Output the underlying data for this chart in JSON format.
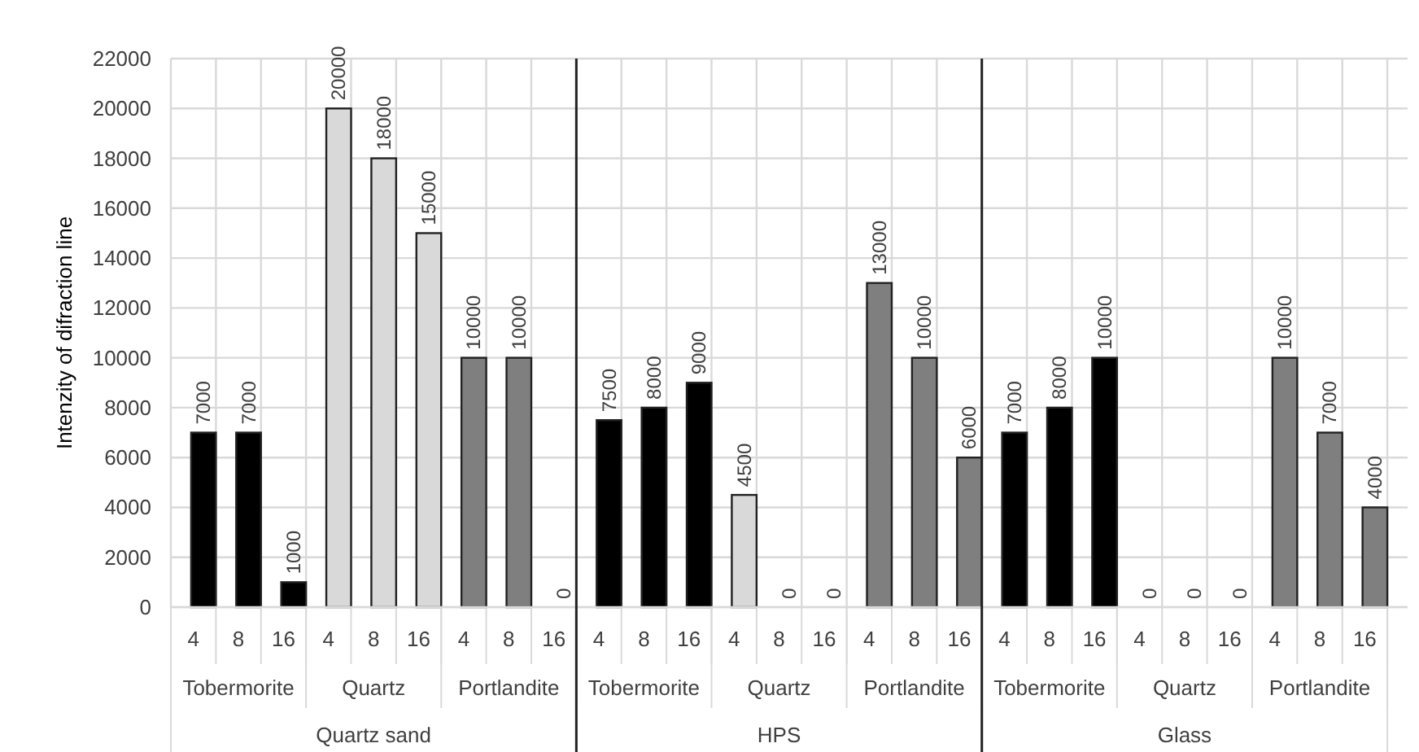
{
  "chart_data": {
    "type": "bar",
    "ylabel": "Intenzity of difraction line",
    "categories": [
      "4",
      "8",
      "16",
      "4",
      "8",
      "16",
      "4",
      "8",
      "16",
      "4",
      "8",
      "16",
      "4",
      "8",
      "16",
      "4",
      "8",
      "16",
      "4",
      "8",
      "16",
      "4",
      "8",
      "16",
      "4",
      "8",
      "16"
    ],
    "annotations": [
      "Tobermorite",
      "Quartz",
      "Portlandite",
      "Tobermorite",
      "Quartz",
      "Portlandite",
      "Tobermorite",
      "Quartz",
      "Portlandite",
      "Quartz sand",
      "HPS",
      "Glass"
    ],
    "values": [
      7000,
      7000,
      1000,
      20000,
      18000,
      15000,
      10000,
      10000,
      0,
      7500,
      8000,
      9000,
      4500,
      0,
      0,
      13000,
      10000,
      6000,
      7000,
      8000,
      10000,
      0,
      0,
      0,
      10000,
      7000,
      4000
    ],
    "colors": [
      "#000000",
      "#000000",
      "#000000",
      "#d9d9d9",
      "#d9d9d9",
      "#d9d9d9",
      "#7f7f7f",
      "#7f7f7f",
      "#7f7f7f",
      "#000000",
      "#000000",
      "#000000",
      "#d9d9d9",
      "#d9d9d9",
      "#d9d9d9",
      "#7f7f7f",
      "#7f7f7f",
      "#7f7f7f",
      "#000000",
      "#000000",
      "#000000",
      "#d9d9d9",
      "#d9d9d9",
      "#d9d9d9",
      "#7f7f7f",
      "#7f7f7f",
      "#7f7f7f"
    ],
    "data_labels": true,
    "ylim": [
      0,
      22000
    ],
    "yticks": [
      0,
      2000,
      4000,
      6000,
      8000,
      10000,
      12000,
      14000,
      16000,
      18000,
      20000,
      22000
    ],
    "grid": true
  }
}
